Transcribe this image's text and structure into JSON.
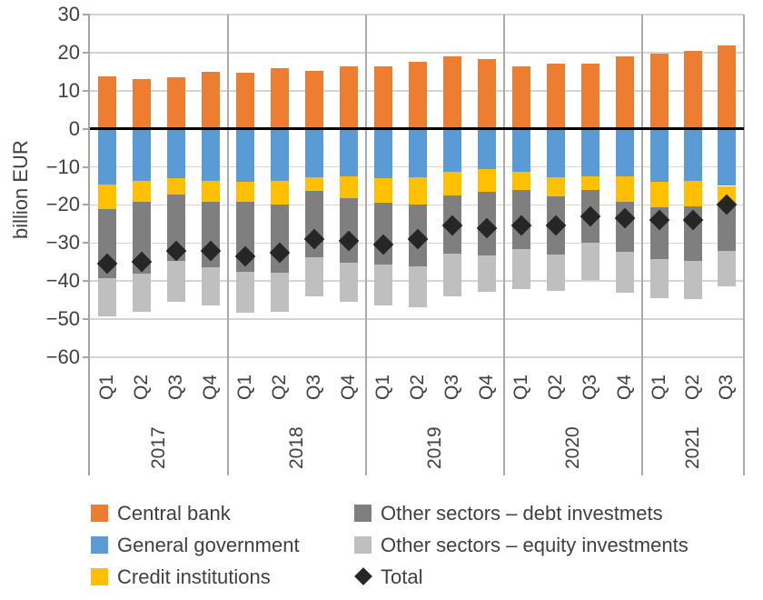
{
  "y_axis": {
    "title": "billion EUR",
    "ticks": [
      {
        "label": "30",
        "value": 30
      },
      {
        "label": "20",
        "value": 20
      },
      {
        "label": "10",
        "value": 10
      },
      {
        "label": "0",
        "value": 0
      },
      {
        "label": "−10",
        "value": -10
      },
      {
        "label": "−20",
        "value": -20
      },
      {
        "label": "−30",
        "value": -30
      },
      {
        "label": "−40",
        "value": -40
      },
      {
        "label": "−50",
        "value": -50
      },
      {
        "label": "−60",
        "value": -60
      }
    ]
  },
  "chart_data": {
    "type": "bar",
    "subtype": "stacked-bars-with-diamond-markers",
    "title": "",
    "xlabel": "",
    "ylabel": "billion EUR",
    "ylim": [
      -60,
      30
    ],
    "grid": true,
    "legend_position": "bottom",
    "groups": [
      {
        "year": "2017",
        "quarters": [
          "Q1",
          "Q2",
          "Q3",
          "Q4"
        ]
      },
      {
        "year": "2018",
        "quarters": [
          "Q1",
          "Q2",
          "Q3",
          "Q4"
        ]
      },
      {
        "year": "2019",
        "quarters": [
          "Q1",
          "Q2",
          "Q3",
          "Q4"
        ]
      },
      {
        "year": "2020",
        "quarters": [
          "Q1",
          "Q2",
          "Q3",
          "Q4"
        ]
      },
      {
        "year": "2021",
        "quarters": [
          "Q1",
          "Q2",
          "Q3"
        ]
      }
    ],
    "series": [
      {
        "name": "Central bank",
        "color": "#ED7D31",
        "values": [
          13.8,
          13.0,
          13.6,
          15.0,
          14.7,
          15.9,
          15.2,
          16.3,
          16.5,
          17.7,
          19.0,
          18.2,
          16.5,
          17.2,
          17.0,
          19.0,
          19.8,
          20.5,
          22.0
        ]
      },
      {
        "name": "General government",
        "color": "#5B9BD5",
        "values": [
          -14.6,
          -13.6,
          -13.0,
          -13.7,
          -14.0,
          -13.8,
          -12.7,
          -12.4,
          -13.0,
          -12.7,
          -11.2,
          -10.6,
          -11.3,
          -12.8,
          -12.4,
          -12.6,
          -14.0,
          -13.6,
          -15.0
        ]
      },
      {
        "name": "Credit institutions",
        "color": "#FFC000",
        "values": [
          -6.6,
          -5.6,
          -4.2,
          -5.5,
          -5.2,
          -6.0,
          -3.7,
          -5.8,
          -6.4,
          -7.1,
          -6.2,
          -6.0,
          -4.8,
          -4.9,
          -3.6,
          -6.6,
          -6.6,
          -6.8,
          -4.7
        ]
      },
      {
        "name": "Other sectors – debt investmets",
        "color": "#7F7F7F",
        "values": [
          -18.1,
          -18.8,
          -17.6,
          -17.2,
          -18.4,
          -17.9,
          -17.3,
          -17.0,
          -16.2,
          -16.3,
          -15.5,
          -16.6,
          -15.5,
          -15.4,
          -14.0,
          -13.2,
          -13.6,
          -14.2,
          -12.3
        ]
      },
      {
        "name": "Other sectors – equity investments",
        "color": "#BFBFBF",
        "values": [
          -9.9,
          -10.1,
          -10.6,
          -10.1,
          -10.6,
          -10.4,
          -10.4,
          -10.2,
          -10.8,
          -10.7,
          -11.1,
          -9.6,
          -10.6,
          -9.5,
          -9.6,
          -10.6,
          -10.4,
          -10.2,
          -9.4
        ]
      }
    ],
    "markers": {
      "name": "Total",
      "color": "#262626",
      "values": [
        -35.5,
        -35.0,
        -32.0,
        -32.0,
        -33.5,
        -32.5,
        -29.0,
        -29.5,
        -30.5,
        -29.0,
        -25.5,
        -26.0,
        -25.5,
        -25.5,
        -23.0,
        -23.5,
        -24.0,
        -24.0,
        -19.8
      ]
    }
  },
  "legend": {
    "columns": [
      [
        {
          "swatch": "square",
          "color": "#ED7D31",
          "label": "Central bank"
        },
        {
          "swatch": "square",
          "color": "#5B9BD5",
          "label": "General government"
        },
        {
          "swatch": "square",
          "color": "#FFC000",
          "label": "Credit institutions"
        }
      ],
      [
        {
          "swatch": "square",
          "color": "#7F7F7F",
          "label": "Other sectors – debt investmets"
        },
        {
          "swatch": "square",
          "color": "#BFBFBF",
          "label": "Other sectors – equity investments"
        },
        {
          "swatch": "diamond",
          "color": "#262626",
          "label": "Total"
        }
      ]
    ]
  },
  "colors": {
    "zero_line": "#000000",
    "gridline": "#d4d4d4",
    "axis_line": "#a6a6a6",
    "separator": "#ababab",
    "text": "#404040"
  }
}
